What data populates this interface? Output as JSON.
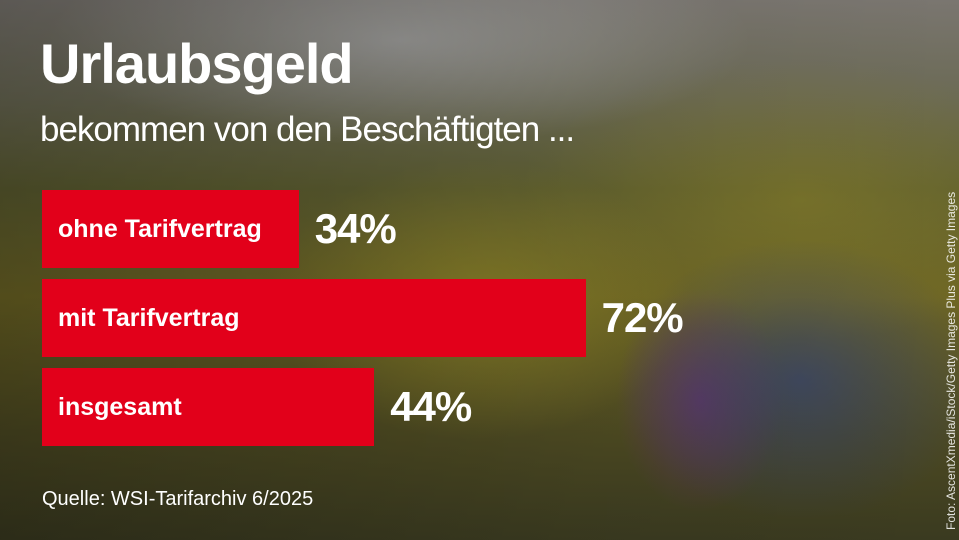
{
  "title": "Urlaubsgeld",
  "subtitle": "bekommen von den Beschäftigten ...",
  "chart_data": {
    "type": "bar",
    "orientation": "horizontal",
    "categories": [
      "ohne Tarifvertrag",
      "mit Tarifvertrag",
      "insgesamt"
    ],
    "values": [
      34,
      72,
      44
    ],
    "value_labels": [
      "34%",
      "72%",
      "44%"
    ],
    "unit": "%",
    "xlim": [
      0,
      100
    ],
    "grid": false,
    "bar_color": "#e2001a"
  },
  "source": "Quelle: WSI-Tarifarchiv 6/2025",
  "photo_credit": "Foto: AscentXmedia/iStock/Getty Images Plus via Getty Images"
}
